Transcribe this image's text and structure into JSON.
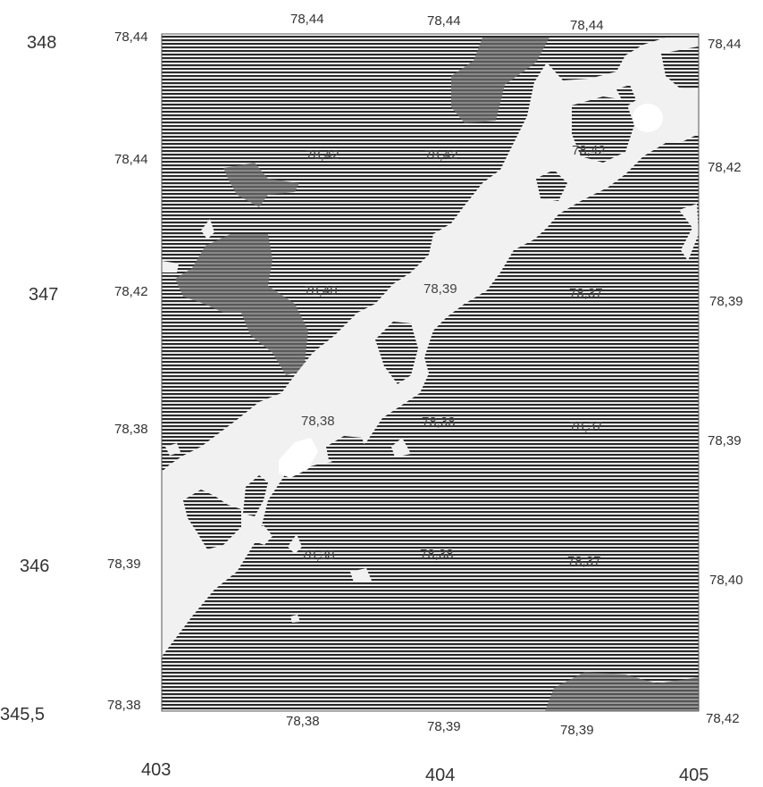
{
  "axes": {
    "y_labels": [
      "348",
      "347",
      "346",
      "345,5"
    ],
    "x_labels": [
      "403",
      "404",
      "405"
    ]
  },
  "top_values": [
    "78,44",
    "78,44",
    "78,44"
  ],
  "bottom_values": [
    "78,38",
    "78,39",
    "78,39"
  ],
  "left_values": [
    "78,44",
    "78,44",
    "78,42",
    "78,38",
    "78,39",
    "78,38"
  ],
  "right_values": [
    "78,44",
    "78,42",
    "78,39",
    "78,39",
    "78,40",
    "78,42"
  ],
  "interior_values": [
    "78,42",
    "78,42",
    "78,42",
    "78,40",
    "78,39",
    "78,37",
    "78,38",
    "78,38",
    "78,37",
    "78,38",
    "78,38",
    "78,37"
  ],
  "colors": {
    "hatch": "#2a2a2a",
    "dark_patch": "#6a6a6a",
    "light_zone": "#f1f1f1",
    "background": "#ffffff"
  }
}
